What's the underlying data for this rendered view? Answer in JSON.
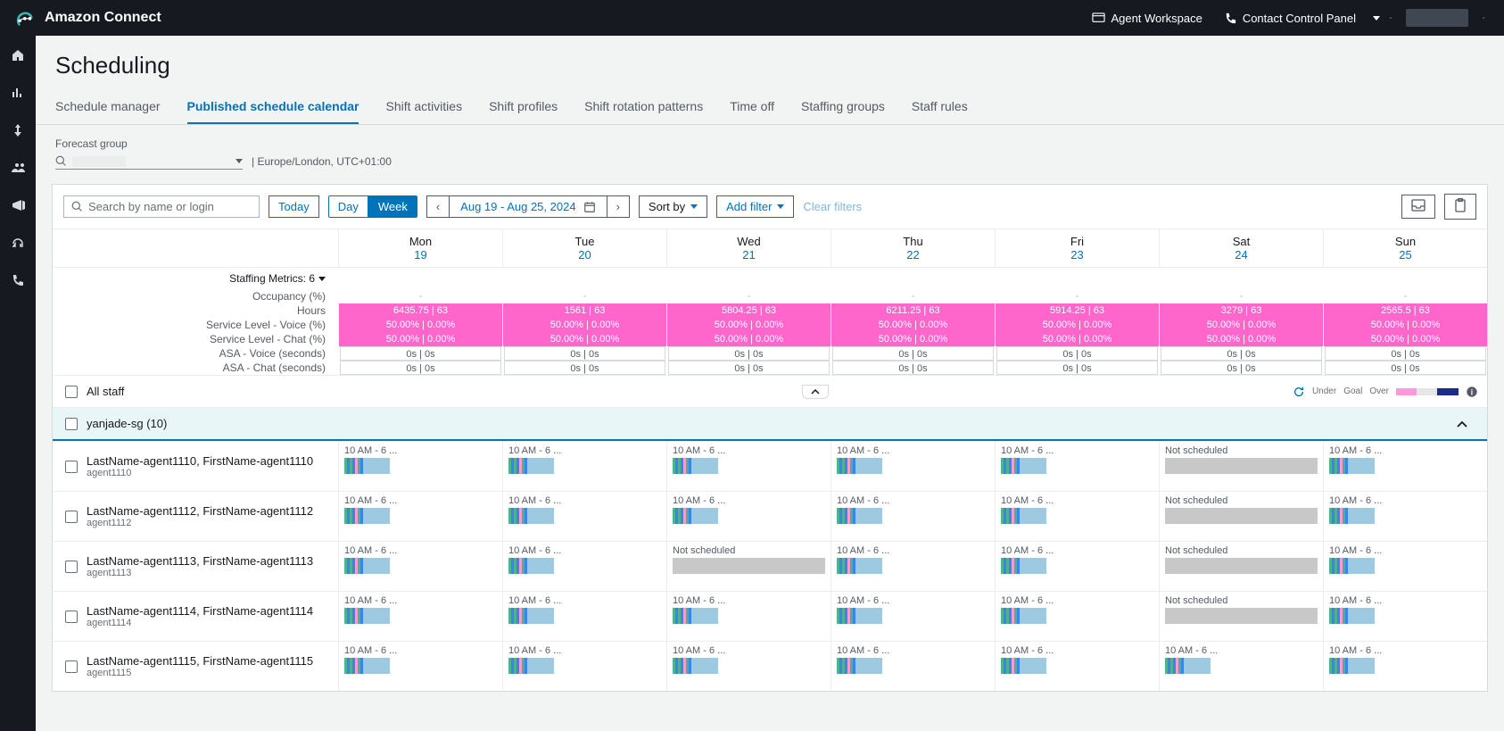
{
  "brand": "Amazon Connect",
  "top_links": {
    "agent_workspace": "Agent Workspace",
    "ccp": "Contact Control Panel"
  },
  "page_title": "Scheduling",
  "tabs": [
    "Schedule manager",
    "Published schedule calendar",
    "Shift activities",
    "Shift profiles",
    "Shift rotation patterns",
    "Time off",
    "Staffing groups",
    "Staff rules"
  ],
  "active_tab": 1,
  "forecast_group_label": "Forecast group",
  "timezone": "| Europe/London, UTC+01:00",
  "search_placeholder": "Search by name or login",
  "view_seg": {
    "today": "Today",
    "day": "Day",
    "week": "Week"
  },
  "date_range": "Aug 19 - Aug 25, 2024",
  "sort_by": "Sort by",
  "add_filter": "Add filter",
  "clear_filters": "Clear filters",
  "days": [
    {
      "name": "Mon",
      "num": "19"
    },
    {
      "name": "Tue",
      "num": "20"
    },
    {
      "name": "Wed",
      "num": "21"
    },
    {
      "name": "Thu",
      "num": "22"
    },
    {
      "name": "Fri",
      "num": "23"
    },
    {
      "name": "Sat",
      "num": "24"
    },
    {
      "name": "Sun",
      "num": "25"
    }
  ],
  "staffing_metrics_label": "Staffing Metrics: 6",
  "metric_labels": [
    "Occupancy (%)",
    "Hours",
    "Service Level - Voice (%)",
    "Service Level - Chat (%)",
    "ASA - Voice (seconds)",
    "ASA - Chat (seconds)"
  ],
  "metrics": [
    [
      "-",
      "-",
      "-",
      "-",
      "-",
      "-",
      "-"
    ],
    [
      "6435.75  |  63",
      "1561  |  63",
      "5804.25  |  63",
      "6211.25  |  63",
      "5914.25  |  63",
      "3279  |  63",
      "2565.5  |  63"
    ],
    [
      "50.00%  |  0.00%",
      "50.00%  |  0.00%",
      "50.00%  |  0.00%",
      "50.00%  |  0.00%",
      "50.00%  |  0.00%",
      "50.00%  |  0.00%",
      "50.00%  |  0.00%"
    ],
    [
      "50.00%  |  0.00%",
      "50.00%  |  0.00%",
      "50.00%  |  0.00%",
      "50.00%  |  0.00%",
      "50.00%  |  0.00%",
      "50.00%  |  0.00%",
      "50.00%  |  0.00%"
    ],
    [
      "0s  |  0s",
      "0s  |  0s",
      "0s  |  0s",
      "0s  |  0s",
      "0s  |  0s",
      "0s  |  0s",
      "0s  |  0s"
    ],
    [
      "0s  |  0s",
      "0s  |  0s",
      "0s  |  0s",
      "0s  |  0s",
      "0s  |  0s",
      "0s  |  0s",
      "0s  |  0s"
    ]
  ],
  "metric_styles": [
    "dash",
    "pink",
    "pink",
    "pink",
    "grey",
    "grey"
  ],
  "all_staff": "All staff",
  "legend": {
    "under": "Under",
    "goal": "Goal",
    "over": "Over"
  },
  "legend_colors": {
    "under": "#ff99dd",
    "goal": "#e6e6e6",
    "over": "#1b2b8a"
  },
  "group_name": "yanjade-sg (10)",
  "shift_label": "10 AM - 6 ...",
  "not_scheduled": "Not scheduled",
  "shift_colors": {
    "stripes": [
      "#4db38a",
      "#3b82f6",
      "#4db38a",
      "#3b82f6",
      "#ff99cc",
      "#4db38a",
      "#3b82f6"
    ],
    "stripe_w": 3,
    "block": "#9ecae1",
    "block_w": 30
  },
  "agents": [
    {
      "name": "LastName-agent1110, FirstName-agent1110",
      "login": "agent1110",
      "days": [
        "shift",
        "shift",
        "shift",
        "shift",
        "shift",
        "not",
        "shift"
      ]
    },
    {
      "name": "LastName-agent1112, FirstName-agent1112",
      "login": "agent1112",
      "days": [
        "shift",
        "shift",
        "shift",
        "shift",
        "shift",
        "not",
        "shift"
      ]
    },
    {
      "name": "LastName-agent1113, FirstName-agent1113",
      "login": "agent1113",
      "days": [
        "shift",
        "shift",
        "not",
        "shift",
        "shift",
        "not",
        "shift"
      ]
    },
    {
      "name": "LastName-agent1114, FirstName-agent1114",
      "login": "agent1114",
      "days": [
        "shift",
        "shift",
        "shift",
        "shift",
        "shift",
        "not",
        "shift"
      ]
    },
    {
      "name": "LastName-agent1115, FirstName-agent1115",
      "login": "agent1115",
      "days": [
        "shift",
        "shift",
        "shift",
        "shift",
        "shift",
        "shift",
        "shift"
      ]
    }
  ]
}
